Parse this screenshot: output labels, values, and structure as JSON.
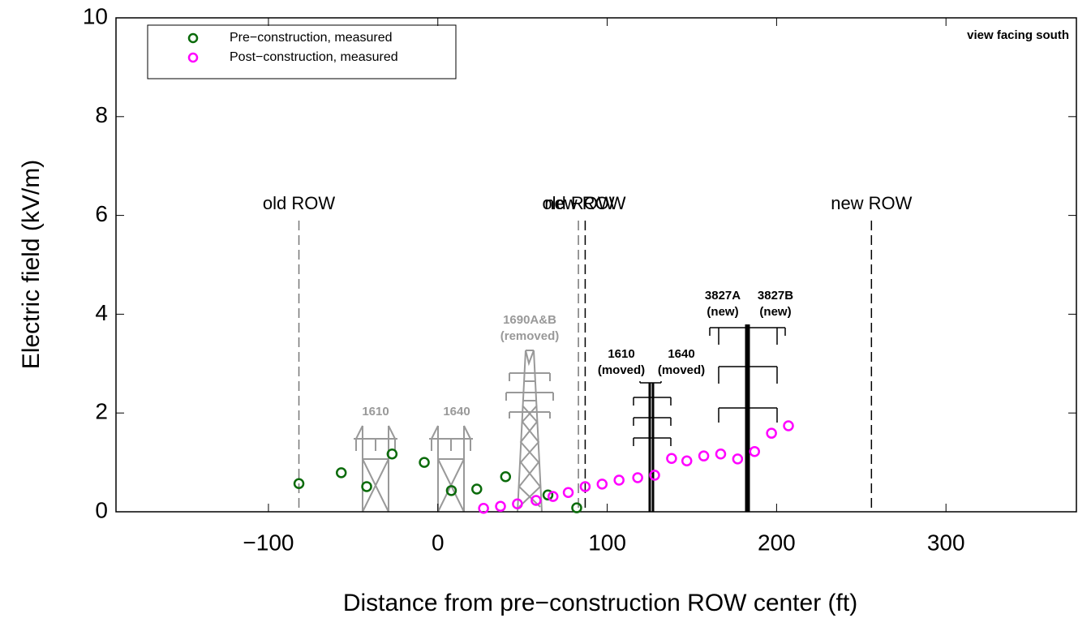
{
  "chart_data": {
    "type": "scatter",
    "xlabel": "Distance from pre−construction ROW center (ft)",
    "ylabel": "Electric field (kV/m)",
    "xlim": [
      -190,
      377
    ],
    "ylim": [
      0,
      10
    ],
    "xticks": [
      {
        "value": -100,
        "label": "−100"
      },
      0,
      100,
      200,
      300
    ],
    "yticks": [
      0,
      2,
      4,
      6,
      8,
      10
    ],
    "legend": "upper left",
    "series": [
      {
        "name": "Pre−construction, measured",
        "color": "#0b6b0b",
        "x": [
          -82,
          -57,
          -42,
          -27,
          -8,
          8,
          23,
          40,
          65,
          82
        ],
        "values": [
          0.57,
          0.79,
          0.51,
          1.17,
          1.0,
          0.43,
          0.46,
          0.71,
          0.34,
          0.08
        ]
      },
      {
        "name": "Post−construction, measured",
        "color": "#ff00ff",
        "x": [
          27,
          37,
          47,
          58,
          68,
          77,
          87,
          97,
          107,
          118,
          128,
          138,
          147,
          157,
          167,
          177,
          187,
          197,
          207
        ],
        "values": [
          0.07,
          0.11,
          0.16,
          0.23,
          0.31,
          0.39,
          0.51,
          0.56,
          0.64,
          0.69,
          0.74,
          1.08,
          1.03,
          1.13,
          1.17,
          1.07,
          1.22,
          1.59,
          1.74
        ]
      }
    ],
    "vlines": [
      {
        "x": -82,
        "label": "old ROW",
        "color": "#777777"
      },
      {
        "x": 83,
        "label": "old ROW",
        "color": "#777777"
      },
      {
        "x": 87,
        "label": "new ROW",
        "color": "#000000"
      },
      {
        "x": 256,
        "label": "new ROW",
        "color": "#000000"
      }
    ],
    "annotations": [
      {
        "lines": [
          "view facing south"
        ]
      },
      {
        "lines": [
          "1610"
        ]
      },
      {
        "lines": [
          "1640"
        ]
      },
      {
        "lines": [
          "1690A&B",
          "(removed)"
        ]
      },
      {
        "lines": [
          "1610",
          "(moved)"
        ]
      },
      {
        "lines": [
          "1640",
          "(moved)"
        ]
      },
      {
        "lines": [
          "3827A",
          "(new)"
        ]
      },
      {
        "lines": [
          "3827B",
          "(new)"
        ]
      }
    ]
  }
}
